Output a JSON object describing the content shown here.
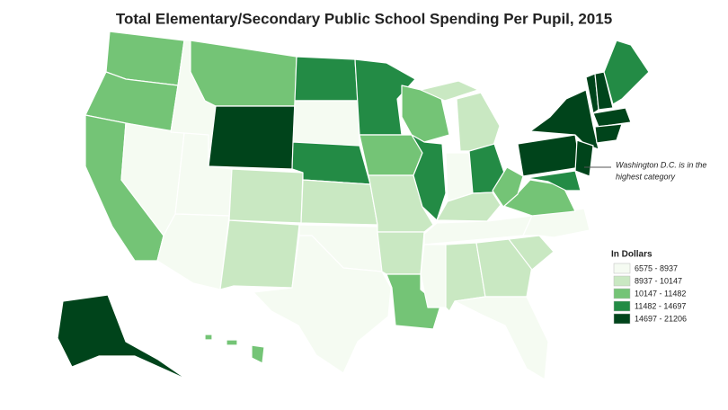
{
  "title": "Total Elementary/Secondary Public School Spending Per Pupil, 2015",
  "annotation": {
    "lines": [
      "Washington D.C. is in the",
      "highest category"
    ]
  },
  "legend": {
    "title": "In Dollars",
    "items": [
      {
        "label": "6575 - 8937",
        "color": "#f5fbf2"
      },
      {
        "label": "8937 - 10147",
        "color": "#c9e8c2"
      },
      {
        "label": "10147 - 11482",
        "color": "#74c476"
      },
      {
        "label": "11482 - 14697",
        "color": "#238b45"
      },
      {
        "label": "14697 - 21206",
        "color": "#00441b"
      }
    ]
  }
}
